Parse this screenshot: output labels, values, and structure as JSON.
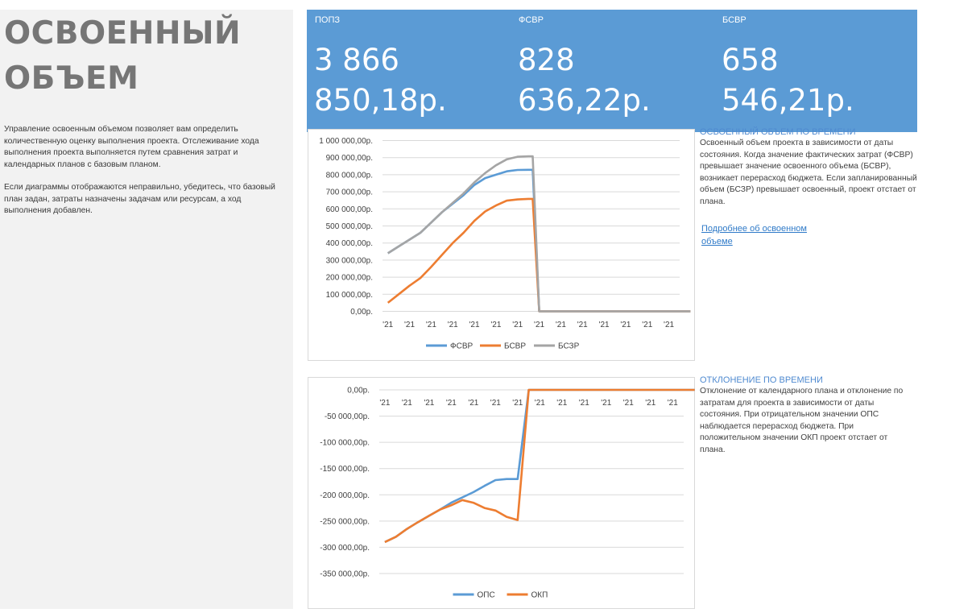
{
  "page": {
    "title": "ОСВОЕННЫЙ ОБЪЕМ",
    "intro_p1": "Управление освоенным объемом позволяет вам определить количественную оценку выполнения проекта. Отслеживание хода выполнения проекта выполняется путем сравнения затрат и календарных планов с базовым планом.",
    "intro_p2": "Если диаграммы отображаются неправильно, убедитесь, что базовый план задан, затраты назначены задачам или ресурсам, а ход выполнения добавлен."
  },
  "kpis": [
    {
      "label": "ПОПЗ",
      "value": "3 866 850,18р."
    },
    {
      "label": "ФСВР",
      "value": "828 636,22р."
    },
    {
      "label": "БСВР",
      "value": "658 546,21р."
    }
  ],
  "side": {
    "section1_heading": "ОСВОЕННЫЙ ОБЪЕМ ПО ВРЕМЕНИ",
    "section1_text": "Освоенный объем проекта в зависимости от даты состояния. Когда значение фактических затрат (ФСВР) превышает значение освоенного объема (БСВР), возникает перерасход бюджета. Если запланированный объем (БСЗР) превышает освоенный, проект отстает от плана.",
    "more_link": "Подробнее об освоенном объеме",
    "section2_heading": "ОТКЛОНЕНИЕ ПО ВРЕМЕНИ",
    "section2_text": "Отклонение от календарного плана и отклонение по затратам для проекта в зависимости от даты состояния. При отрицательном значении ОПС наблюдается перерасход бюджета. При положительном значении ОКП проект отстает от плана."
  },
  "chart_data": [
    {
      "type": "line",
      "x_tick_labels": [
        "'21",
        "'21",
        "'21",
        "'21",
        "'21",
        "'21",
        "'21",
        "'21",
        "'21",
        "'21",
        "'21",
        "'21",
        "'21",
        "'21"
      ],
      "x": [
        0,
        0.5,
        1,
        1.5,
        2,
        2.5,
        3,
        3.5,
        4,
        4.5,
        5,
        5.5,
        6,
        6.5,
        6.7,
        7,
        8,
        9,
        10,
        11,
        12,
        13,
        14
      ],
      "ylim": [
        0,
        1000000
      ],
      "y_tick_values": [
        0,
        100000,
        200000,
        300000,
        400000,
        500000,
        600000,
        700000,
        800000,
        900000,
        1000000
      ],
      "y_tick_labels": [
        "0,00р.",
        "100 000,00р.",
        "200 000,00р.",
        "300 000,00р.",
        "400 000,00р.",
        "500 000,00р.",
        "600 000,00р.",
        "700 000,00р.",
        "800 000,00р.",
        "900 000,00р.",
        "1 000 000,00р."
      ],
      "series": [
        {
          "name": "ФСВР",
          "color": "#5b9bd5",
          "values": [
            340000,
            380000,
            420000,
            460000,
            520000,
            580000,
            630000,
            680000,
            740000,
            780000,
            800000,
            820000,
            828000,
            828636,
            828636,
            0,
            0,
            0,
            0,
            0,
            0,
            0,
            0
          ]
        },
        {
          "name": "БСВР",
          "color": "#ed7d31",
          "values": [
            50000,
            100000,
            150000,
            195000,
            260000,
            330000,
            400000,
            460000,
            530000,
            585000,
            620000,
            648000,
            655000,
            658546,
            658546,
            0,
            0,
            0,
            0,
            0,
            0,
            0,
            0
          ]
        },
        {
          "name": "БСЗР",
          "color": "#a5a5a5",
          "values": [
            340000,
            380000,
            420000,
            460000,
            520000,
            580000,
            635000,
            690000,
            755000,
            810000,
            855000,
            890000,
            905000,
            908000,
            908000,
            0,
            0,
            0,
            0,
            0,
            0,
            0,
            0
          ]
        }
      ],
      "legend": "bottom",
      "grid": true
    },
    {
      "type": "line",
      "x_tick_labels": [
        "'21",
        "'21",
        "'21",
        "'21",
        "'21",
        "'21",
        "'21",
        "'21",
        "'21",
        "'21",
        "'21",
        "'21",
        "'21",
        "'21"
      ],
      "x": [
        0,
        0.5,
        1,
        1.5,
        2,
        2.5,
        3,
        3.5,
        4,
        4.5,
        5,
        5.5,
        6,
        6.5,
        6.7,
        7,
        8,
        9,
        10,
        11,
        12,
        13,
        14
      ],
      "ylim": [
        -350000,
        0
      ],
      "y_tick_values": [
        0,
        -50000,
        -100000,
        -150000,
        -200000,
        -250000,
        -300000,
        -350000
      ],
      "y_tick_labels": [
        "0,00р.",
        "-50 000,00р.",
        "-100 000,00р.",
        "-150 000,00р.",
        "-200 000,00р.",
        "-250 000,00р.",
        "-300 000,00р.",
        "-350 000,00р."
      ],
      "series": [
        {
          "name": "ОПС",
          "color": "#5b9bd5",
          "values": [
            -290000,
            -280000,
            -265000,
            -252000,
            -240000,
            -228000,
            -215000,
            -205000,
            -195000,
            -183000,
            -172000,
            -170000,
            -170000,
            0,
            0,
            0,
            0,
            0,
            0,
            0,
            0,
            0,
            0
          ]
        },
        {
          "name": "ОКП",
          "color": "#ed7d31",
          "values": [
            -290000,
            -280000,
            -265000,
            -252000,
            -240000,
            -228000,
            -220000,
            -210000,
            -215000,
            -225000,
            -230000,
            -242000,
            -248000,
            0,
            0,
            0,
            0,
            0,
            0,
            0,
            0,
            0,
            0
          ]
        }
      ],
      "legend": "bottom",
      "grid": true
    }
  ]
}
